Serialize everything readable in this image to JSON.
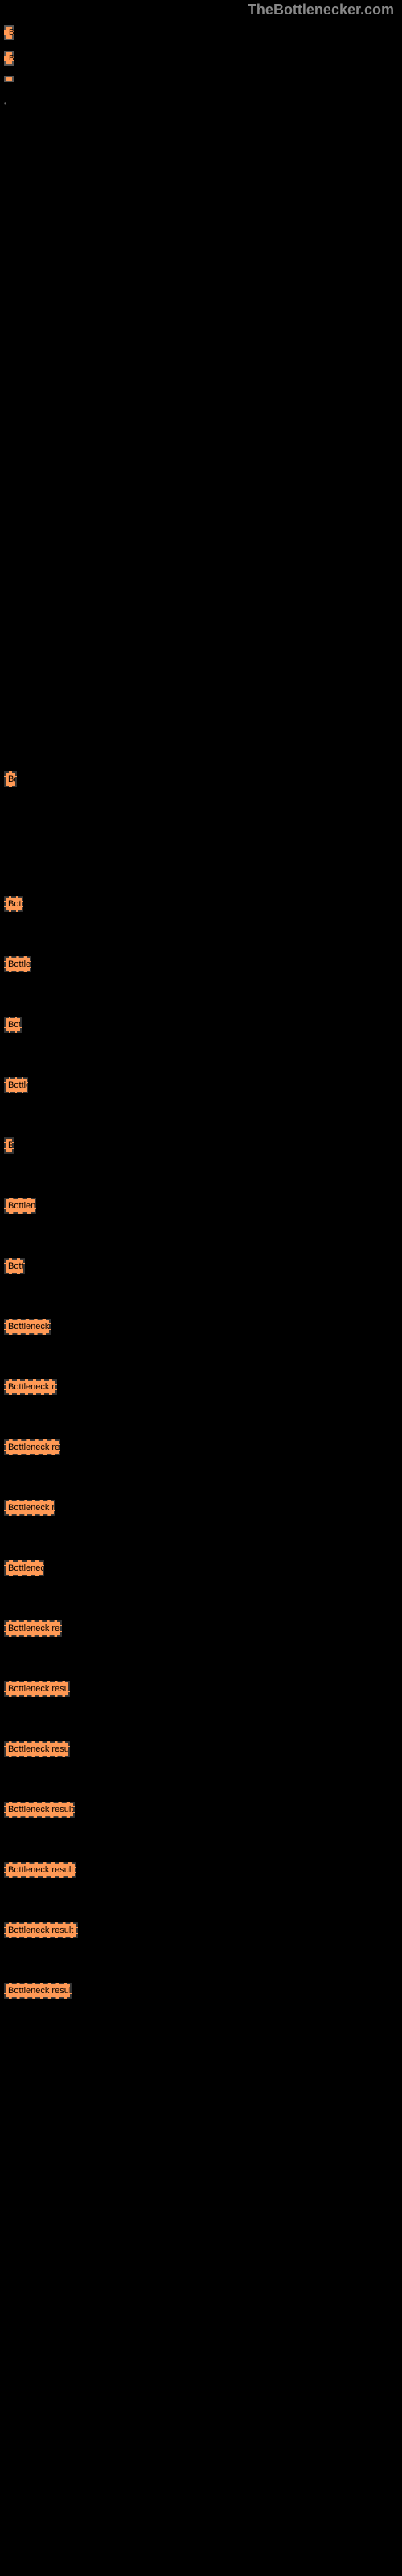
{
  "brand": "TheBottlenecker.com",
  "top_bars": [
    {
      "label": "B",
      "width": 12
    },
    {
      "label": "B",
      "width": 10
    },
    {
      "label": "",
      "width": 6
    }
  ],
  "dot": "•",
  "results": [
    {
      "label": "Bottleneck result",
      "width": 16
    },
    {
      "label": "Bottleneck result",
      "width": 24
    },
    {
      "label": "Bottleneck result",
      "width": 34
    },
    {
      "label": "Bottleneck result",
      "width": 22
    },
    {
      "label": "Bottleneck result",
      "width": 30
    },
    {
      "label": "Bottleneck result",
      "width": 12
    },
    {
      "label": "Bottleneck result",
      "width": 40
    },
    {
      "label": "Bottleneck result",
      "width": 26
    },
    {
      "label": "Bottleneck result",
      "width": 58
    },
    {
      "label": "Bottleneck result",
      "width": 66
    },
    {
      "label": "Bottleneck result",
      "width": 70
    },
    {
      "label": "Bottleneck result",
      "width": 64
    },
    {
      "label": "Bottleneck result",
      "width": 50
    },
    {
      "label": "Bottleneck result",
      "width": 72
    },
    {
      "label": "Bottleneck result",
      "width": 82
    },
    {
      "label": "Bottleneck result",
      "width": 82
    },
    {
      "label": "Bottleneck result",
      "width": 88
    },
    {
      "label": "Bottleneck result",
      "width": 90
    },
    {
      "label": "Bottleneck result",
      "width": 92
    },
    {
      "label": "Bottleneck result",
      "width": 84
    }
  ],
  "colors": {
    "background": "#000000",
    "bar_fill": "#ff9955",
    "bar_text": "#000000",
    "brand_text": "#888888",
    "border_dash": "#333333"
  }
}
